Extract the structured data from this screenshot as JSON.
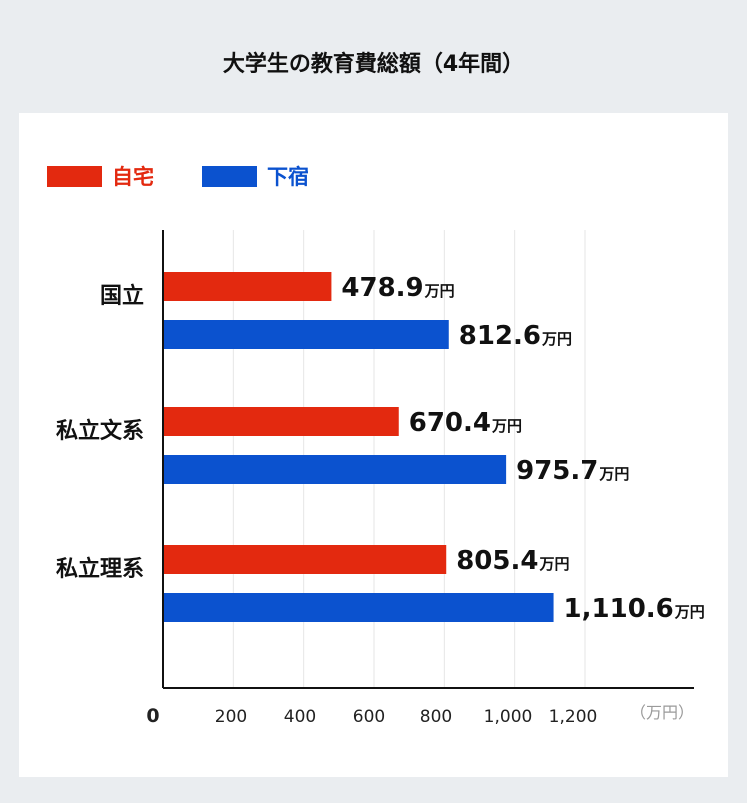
{
  "chart_data": {
    "type": "bar",
    "orientation": "horizontal",
    "title": "大学生の教育費総額（4年間）",
    "categories": [
      "国立",
      "私立文系",
      "私立理系"
    ],
    "series": [
      {
        "name": "自宅",
        "color": "#e3290f",
        "values": [
          478.9,
          670.4,
          805.4
        ]
      },
      {
        "name": "下宿",
        "color": "#0b52cf",
        "values": [
          812.6,
          975.7,
          1110.6
        ]
      }
    ],
    "value_labels": [
      [
        "478.9",
        "670.4",
        "805.4"
      ],
      [
        "812.6",
        "975.7",
        "1,110.6"
      ]
    ],
    "value_unit": "万円",
    "x_ticks": [
      {
        "value": 0,
        "label": "0"
      },
      {
        "value": 200,
        "label": "200"
      },
      {
        "value": 400,
        "label": "400"
      },
      {
        "value": 600,
        "label": "600"
      },
      {
        "value": 800,
        "label": "800"
      },
      {
        "value": 1000,
        "label": "1,000"
      },
      {
        "value": 1200,
        "label": "1,200"
      }
    ],
    "x_unit_label": "（万円）",
    "xlim": [
      0,
      1200
    ],
    "grid": true,
    "legend_position": "top-left"
  }
}
